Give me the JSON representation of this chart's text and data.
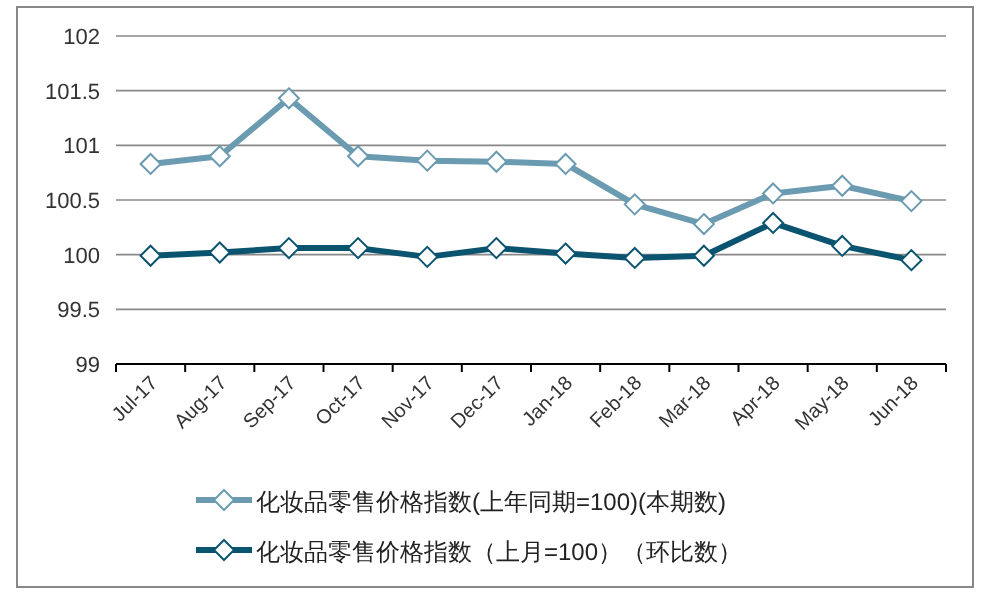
{
  "chart_data": {
    "type": "line",
    "categories": [
      "Jul-17",
      "Aug-17",
      "Sep-17",
      "Oct-17",
      "Nov-17",
      "Dec-17",
      "Jan-18",
      "Feb-18",
      "Mar-18",
      "Apr-18",
      "May-18",
      "Jun-18"
    ],
    "series": [
      {
        "name": "化妆品零售价格指数(上年同期=100)(本期数)",
        "color": "#6a9bb1",
        "values": [
          100.83,
          100.9,
          101.43,
          100.9,
          100.86,
          100.85,
          100.83,
          100.46,
          100.28,
          100.56,
          100.63,
          100.49
        ]
      },
      {
        "name": "化妆品零售价格指数（上月=100）（环比数）",
        "color": "#0b5470",
        "values": [
          99.99,
          100.02,
          100.06,
          100.06,
          99.98,
          100.06,
          100.01,
          99.97,
          99.99,
          100.29,
          100.08,
          99.95
        ]
      }
    ],
    "ylim": [
      99,
      102
    ],
    "yticks": [
      99,
      99.5,
      100,
      100.5,
      101,
      101.5,
      102
    ],
    "grid": "y",
    "legend": "bottom",
    "marker": "diamond",
    "line_style": "solid"
  }
}
